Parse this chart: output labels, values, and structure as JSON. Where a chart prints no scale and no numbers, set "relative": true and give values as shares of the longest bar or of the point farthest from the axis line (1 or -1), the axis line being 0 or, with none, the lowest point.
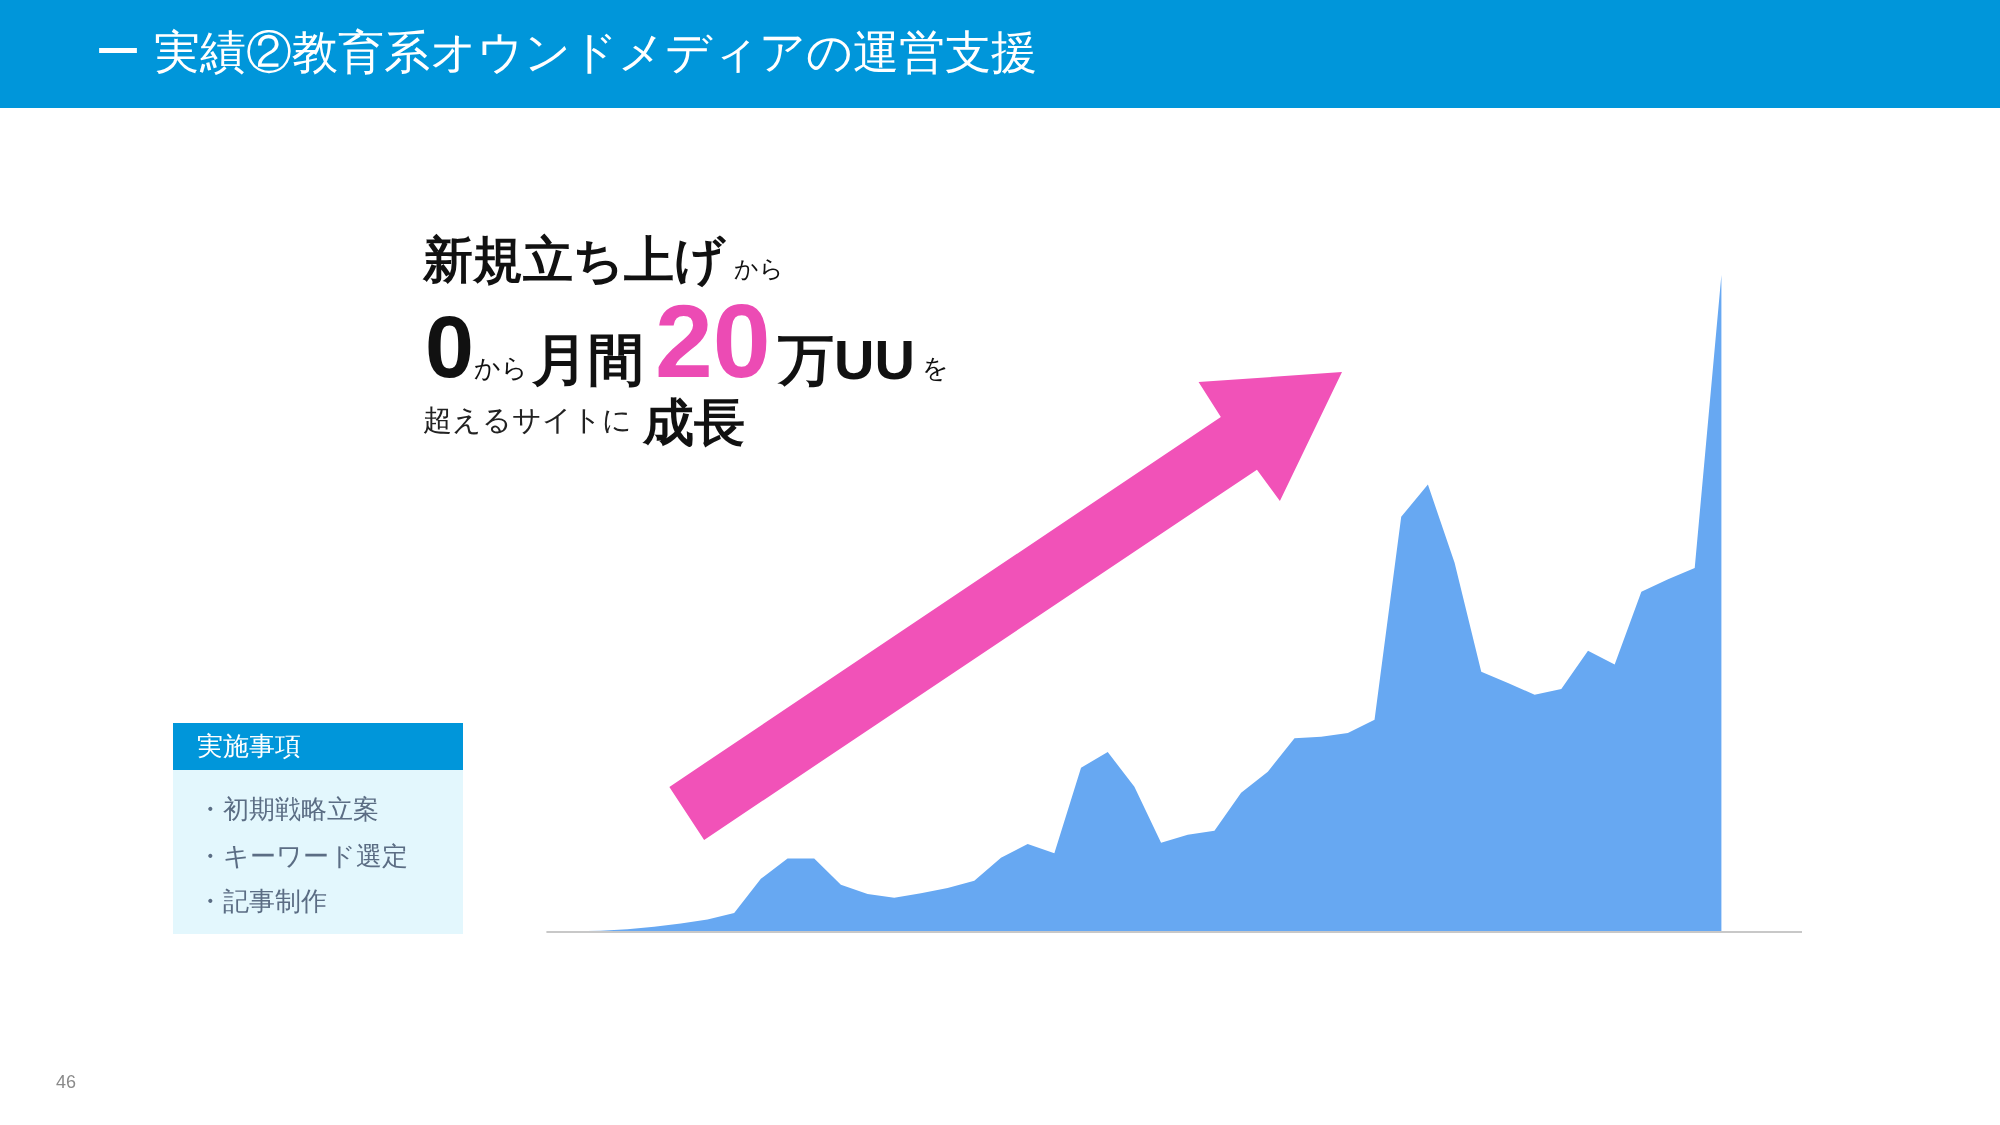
{
  "chart_data": {
    "type": "area",
    "title": "ー 実績②教育系オウンドメディアの運営支援",
    "relative": true,
    "categories": [
      null,
      null,
      null,
      null,
      null,
      null,
      null,
      null,
      null,
      null,
      null,
      null,
      null,
      null,
      null,
      null,
      null,
      null,
      null,
      null,
      null,
      null,
      null,
      null,
      null,
      null,
      null,
      null,
      null,
      null,
      null,
      null,
      null,
      null,
      null,
      null,
      null,
      null,
      null,
      null,
      null,
      null,
      null,
      null,
      null
    ],
    "series": [
      {
        "color": "#67a8f2",
        "values": [
          0,
          0.001,
          0.002,
          0.004,
          0.008,
          0.013,
          0.019,
          0.029,
          0.081,
          0.112,
          0.112,
          0.072,
          0.058,
          0.052,
          0.059,
          0.067,
          0.078,
          0.113,
          0.134,
          0.12,
          0.25,
          0.274,
          0.221,
          0.136,
          0.148,
          0.154,
          0.212,
          0.244,
          0.295,
          0.297,
          0.303,
          0.323,
          0.632,
          0.681,
          0.562,
          0.396,
          0.379,
          0.361,
          0.37,
          0.428,
          0.407,
          0.518,
          0.537,
          0.554,
          1
        ]
      }
    ],
    "annotations": [
      "新規立ち上げ",
      "から",
      "0",
      "から",
      "月間",
      "20",
      "万UU",
      "を",
      "超えるサイトに",
      "成長",
      "実施事項",
      "・初期戦略立案",
      "・キーワード選定",
      "・記事制作",
      "46"
    ]
  }
}
